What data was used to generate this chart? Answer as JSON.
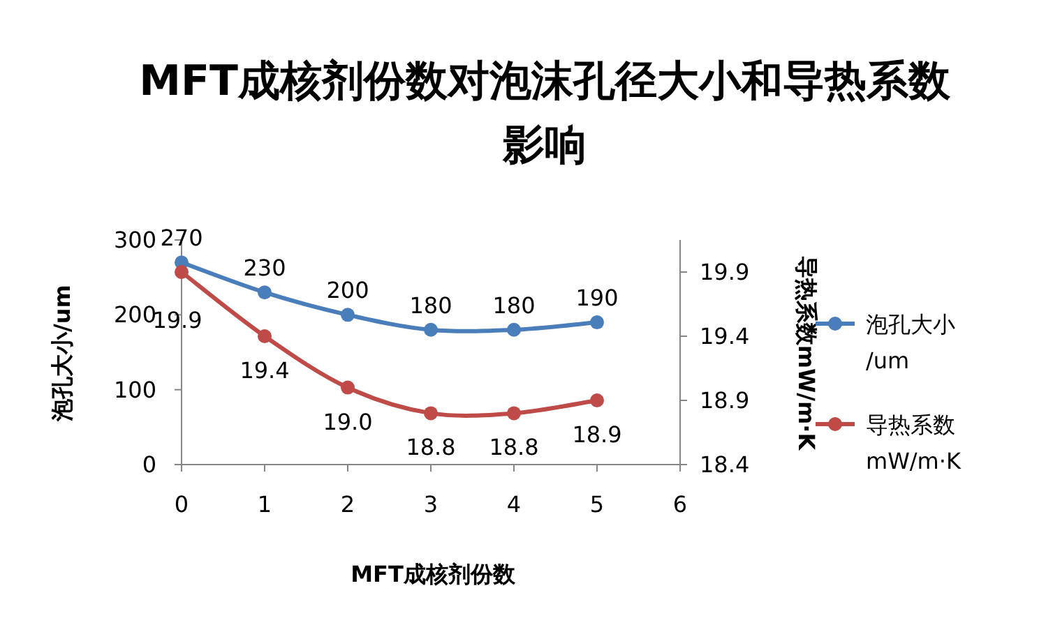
{
  "chart_data": {
    "type": "line",
    "title": "MFT成核剂份数对泡沫孔径大小和导热系数影响",
    "xlabel": "MFT成核剂份数",
    "ylabel": "泡孔大小/um",
    "y2label": "导热系数mW/m·K",
    "x": [
      0,
      1,
      2,
      3,
      4,
      5
    ],
    "xlim": [
      0,
      6
    ],
    "xticks": [
      0,
      1,
      2,
      3,
      4,
      5,
      6
    ],
    "ylim": [
      0,
      300
    ],
    "yticks": [
      0,
      100,
      200,
      300
    ],
    "y2lim": [
      18.4,
      20.15
    ],
    "y2ticks": [
      18.4,
      18.9,
      19.4,
      19.9
    ],
    "series": [
      {
        "name": "泡孔大小/um",
        "color": "#4a7ebb",
        "values": [
          270,
          230,
          200,
          180,
          180,
          190
        ],
        "value_labels": [
          "270",
          "230",
          "200",
          "180",
          "180",
          "190"
        ]
      },
      {
        "name": "导热系数mW/m·K",
        "color": "#be4b48",
        "axis": "y2",
        "values": [
          19.9,
          19.4,
          19.0,
          18.8,
          18.8,
          18.9
        ],
        "value_labels": [
          "19.9",
          "19.4",
          "19.0",
          "18.8",
          "18.8",
          "18.9"
        ]
      }
    ],
    "marker": "circle",
    "line_style": "solid",
    "grid": false,
    "legend": "right"
  }
}
